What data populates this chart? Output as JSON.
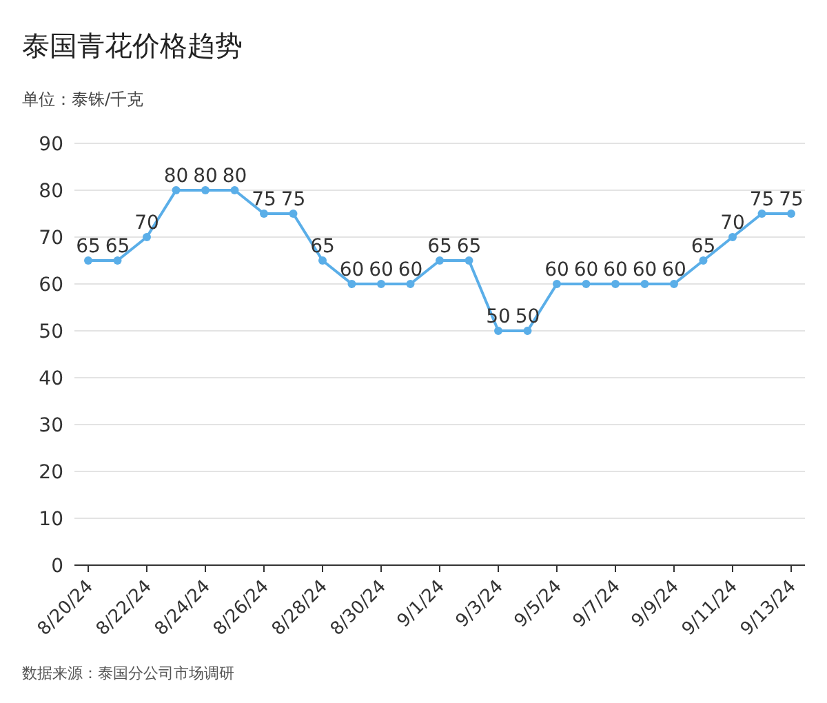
{
  "chart_data": {
    "type": "line",
    "title": "泰国青花价格趋势",
    "ylabel": "单位：泰铢/千克",
    "categories": [
      "8/20/24",
      null,
      "8/22/24",
      null,
      "8/24/24",
      null,
      "8/26/24",
      null,
      "8/28/24",
      null,
      "8/30/24",
      null,
      "9/1/24",
      null,
      "9/3/24",
      null,
      "9/5/24",
      null,
      "9/7/24",
      null,
      "9/9/24",
      null,
      "9/11/24",
      null,
      "9/13/24"
    ],
    "series": [
      {
        "color": "#5aaee8",
        "values": [
          65,
          65,
          70,
          80,
          80,
          80,
          75,
          75,
          65,
          60,
          60,
          60,
          65,
          65,
          50,
          50,
          60,
          60,
          60,
          60,
          60,
          65,
          70,
          75,
          75
        ]
      }
    ],
    "ylim": [
      0,
      90
    ],
    "yticks": [
      0,
      10,
      20,
      30,
      40,
      50,
      60,
      70,
      80,
      90
    ],
    "grid": "y",
    "marker": "circle",
    "line_style": "solid",
    "data_labels": true,
    "annotations": [
      "数据来源：泰国分公司市场调研"
    ]
  }
}
